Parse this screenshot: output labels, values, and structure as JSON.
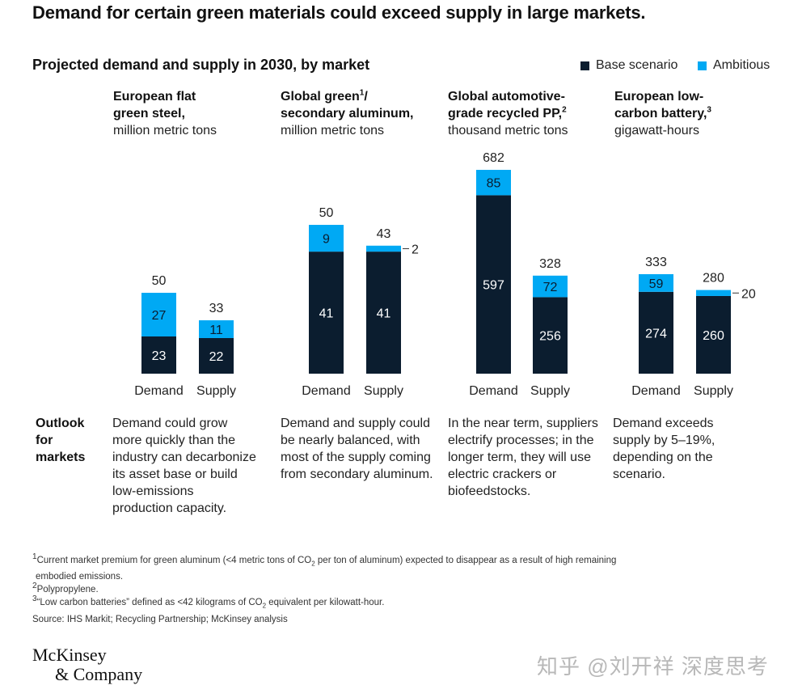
{
  "headline": "Demand for certain green materials could exceed supply in large markets.",
  "subtitle": "Projected demand and supply in 2030, by market",
  "legend": [
    {
      "label": "Base scenario",
      "color": "#0b1d2f"
    },
    {
      "label": "Ambitious",
      "color": "#00a9f4"
    }
  ],
  "colors": {
    "base": "#0b1d2f",
    "ambitious": "#00a9f4"
  },
  "panels": [
    {
      "title_line1": "European flat",
      "title_line2": "green steel,",
      "unit": "million metric tons",
      "sup": ""
    },
    {
      "title_line1": "Global green",
      "title_line2": "secondary aluminum,",
      "unit": "million metric tons",
      "sup": "1",
      "sup_suffix": "/"
    },
    {
      "title_line1": "Global automotive-",
      "title_line2": "grade recycled PP,",
      "unit": "thousand metric tons",
      "sup": "2"
    },
    {
      "title_line1": "European low-",
      "title_line2": "carbon battery,",
      "unit": "gigawatt-hours",
      "sup": "3"
    }
  ],
  "chart_data": [
    {
      "type": "bar",
      "stacked": true,
      "title": "European flat green steel, million metric tons",
      "categories": [
        "Demand",
        "Supply"
      ],
      "series": [
        {
          "name": "Base scenario",
          "values": [
            23,
            22
          ]
        },
        {
          "name": "Ambitious",
          "values": [
            27,
            11
          ]
        }
      ],
      "totals": [
        50,
        33
      ],
      "ylim": [
        0,
        60
      ]
    },
    {
      "type": "bar",
      "stacked": true,
      "title": "Global green/secondary aluminum, million metric tons",
      "categories": [
        "Demand",
        "Supply"
      ],
      "series": [
        {
          "name": "Base scenario",
          "values": [
            41,
            41
          ]
        },
        {
          "name": "Ambitious",
          "values": [
            9,
            2
          ]
        }
      ],
      "totals": [
        50,
        43
      ],
      "ylim": [
        0,
        60
      ]
    },
    {
      "type": "bar",
      "stacked": true,
      "title": "Global automotive-grade recycled PP, thousand metric tons",
      "categories": [
        "Demand",
        "Supply"
      ],
      "series": [
        {
          "name": "Base scenario",
          "values": [
            597,
            256
          ]
        },
        {
          "name": "Ambitious",
          "values": [
            85,
            72
          ]
        }
      ],
      "totals": [
        682,
        328
      ],
      "ylim": [
        0,
        700
      ]
    },
    {
      "type": "bar",
      "stacked": true,
      "title": "European low-carbon battery, gigawatt-hours",
      "categories": [
        "Demand",
        "Supply"
      ],
      "series": [
        {
          "name": "Base scenario",
          "values": [
            274,
            260
          ]
        },
        {
          "name": "Ambitious",
          "values": [
            59,
            20
          ]
        }
      ],
      "totals": [
        333,
        280
      ],
      "ylim": [
        0,
        650
      ]
    }
  ],
  "outlook": {
    "label": "Outlook for markets",
    "texts": [
      "Demand could grow more quickly than the industry can decarbonize its asset base or build low-emissions production capacity.",
      "Demand and supply could be nearly balanced, with most of the supply coming from secondary aluminum.",
      "In the near term, suppliers electrify processes; in the longer term, they will use electric crackers or biofeedstocks.",
      "Demand exceeds supply by 5–19%, depending on the scenario."
    ]
  },
  "footnotes": {
    "f1_sup": "1",
    "f1a": "Current market premium for green aluminum (<4 metric tons of CO",
    "f1b": " per ton of aluminum) expected to disappear as a result of high remaining",
    "f1c": "embodied emissions.",
    "f2_sup": "2",
    "f2": "Polypropylene.",
    "f3_sup": "3",
    "f3a": "“Low carbon batteries” defined as <42 kilograms of CO",
    "f3b": " equivalent per kilowatt-hour.",
    "co2_sub": "2",
    "source": "Source: IHS Markit; Recycling Partnership; McKinsey analysis"
  },
  "logo": {
    "line1": "McKinsey",
    "line2": "& Company"
  },
  "watermark": "知乎 @刘开祥 深度思考"
}
